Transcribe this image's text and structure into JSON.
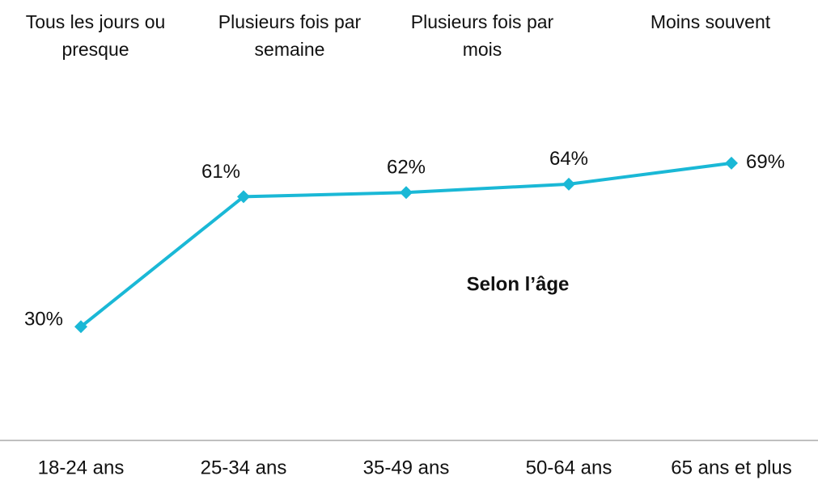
{
  "chart_data": {
    "type": "line",
    "header_labels": [
      "Tous les jours ou presque",
      "Plusieurs fois par semaine",
      "Plusieurs fois par mois",
      "Moins souvent"
    ],
    "annotation": "Selon l’âge",
    "categories": [
      "18-24 ans",
      "25-34 ans",
      "35-49 ans",
      "50-64 ans",
      "65 ans et plus"
    ],
    "series": [
      {
        "name": "Selon l’âge",
        "color": "#1ab8d6",
        "values": [
          30,
          61,
          62,
          64,
          69
        ],
        "value_labels": [
          "30%",
          "61%",
          "62%",
          "64%",
          "69%"
        ]
      }
    ],
    "ylim": [
      0,
      100
    ]
  }
}
